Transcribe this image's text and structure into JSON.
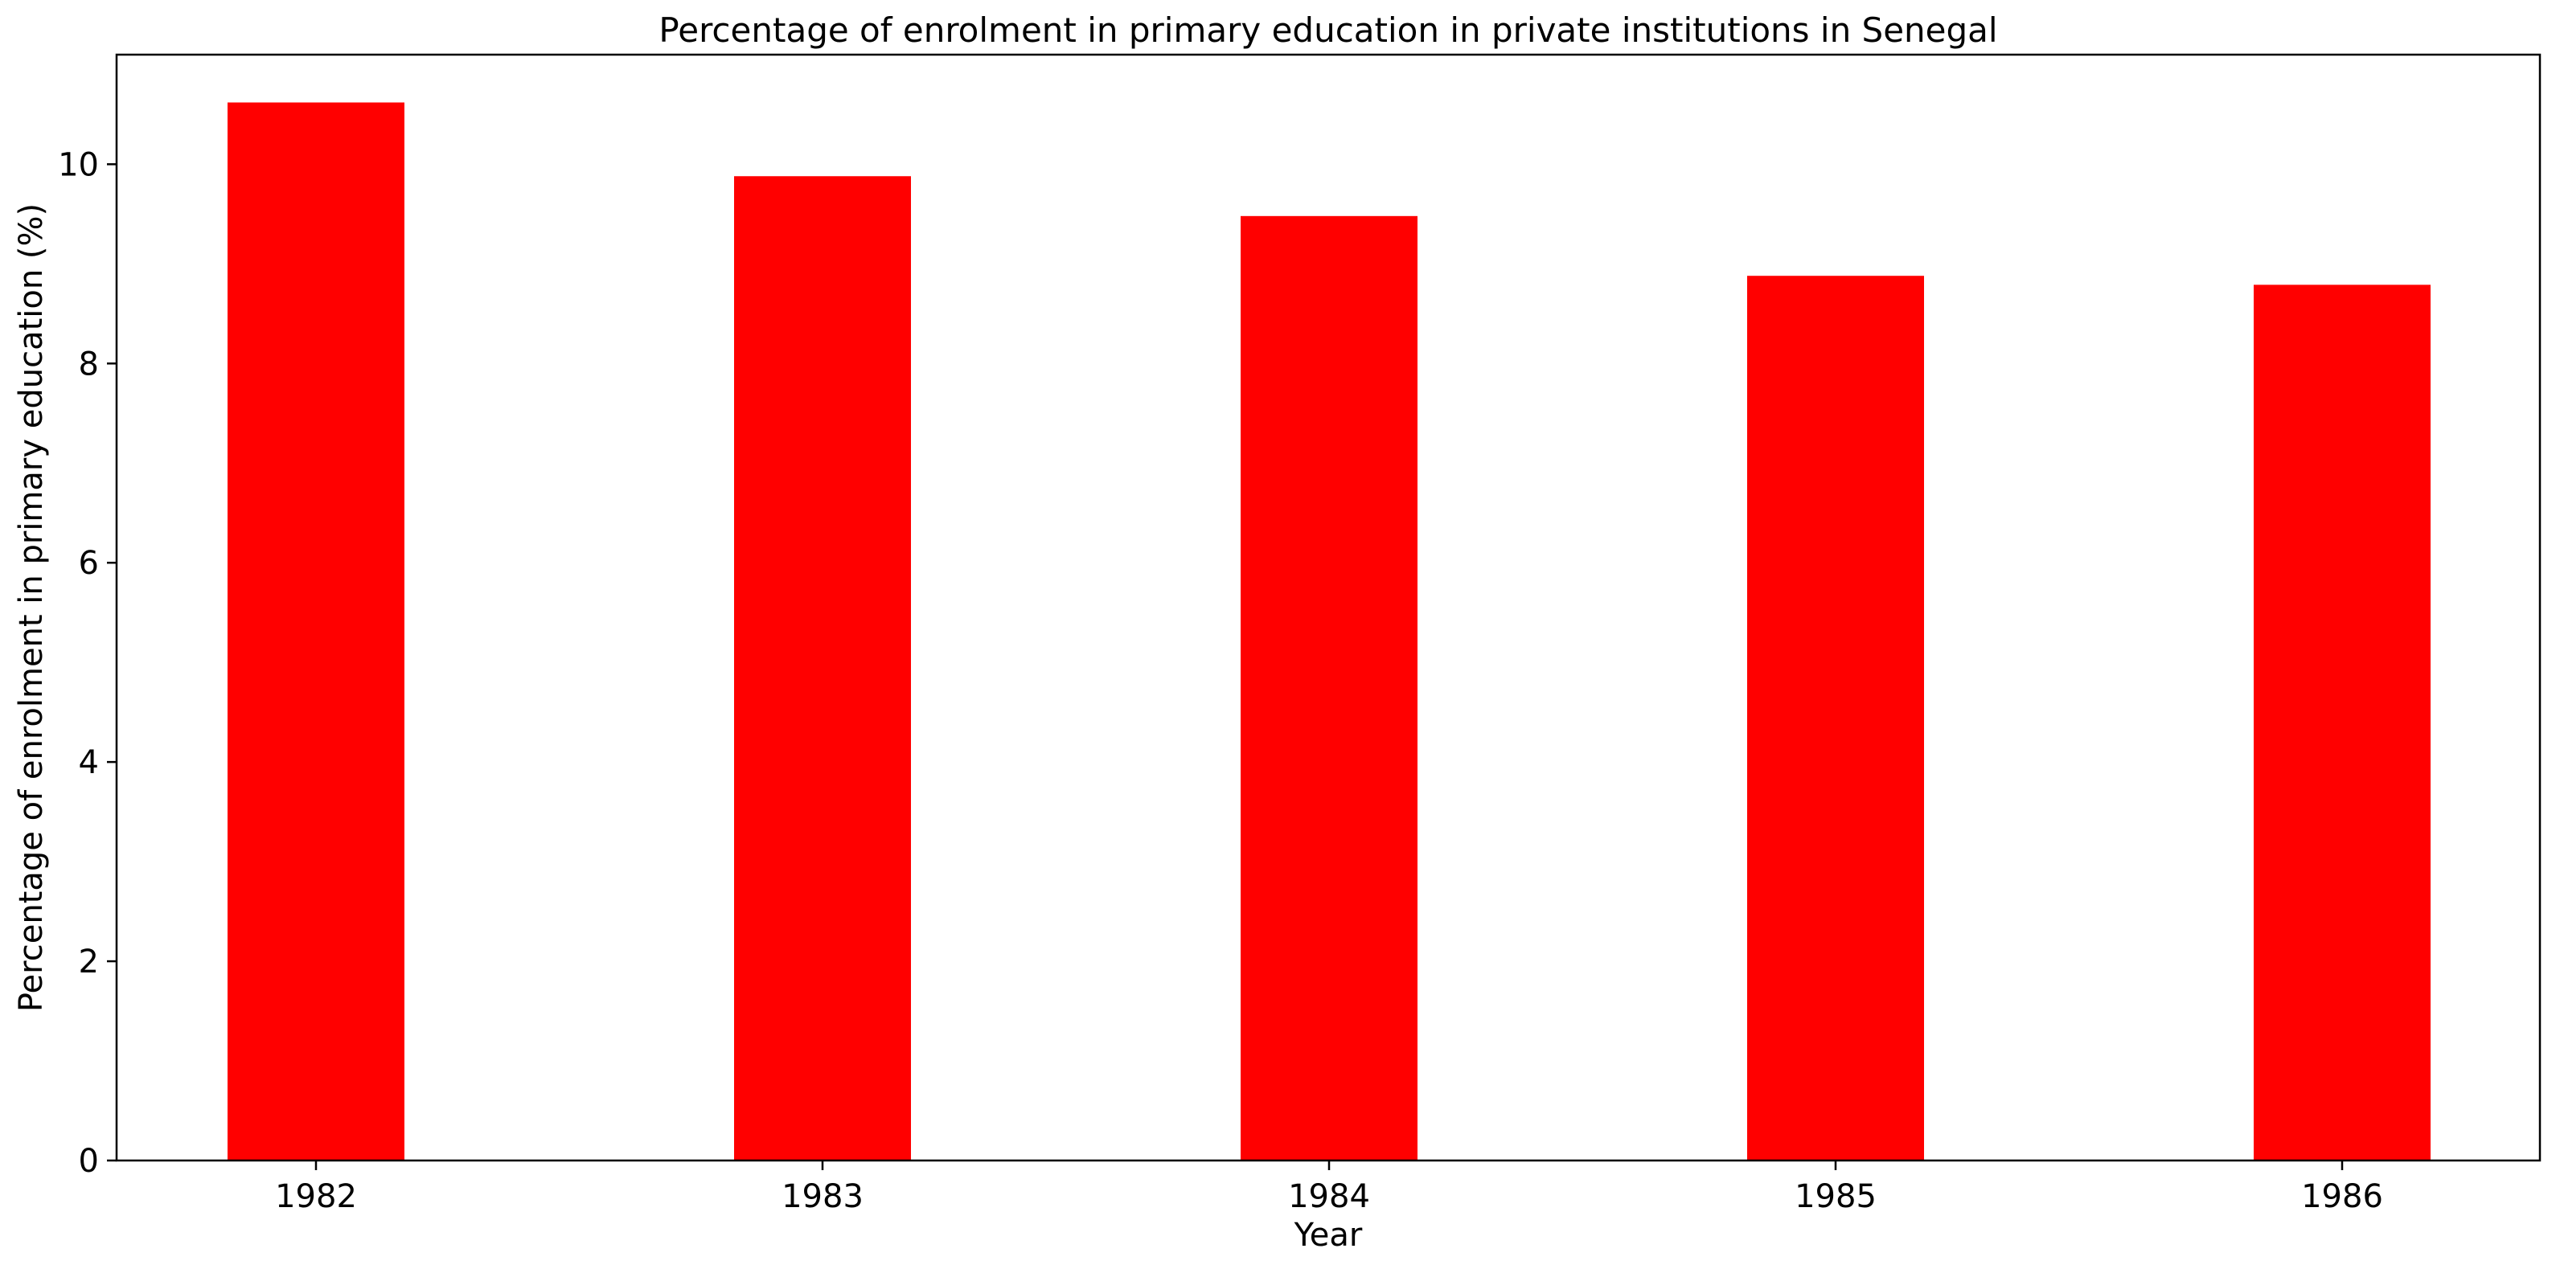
{
  "chart_data": {
    "type": "bar",
    "title": "Percentage of enrolment in primary education in private institutions in Senegal",
    "xlabel": "Year",
    "ylabel": "Percentage of enrolment in primary education (%)",
    "categories": [
      "1982",
      "1983",
      "1984",
      "1985",
      "1986"
    ],
    "values": [
      10.62,
      9.88,
      9.48,
      8.88,
      8.79
    ],
    "ylim": [
      0,
      11.1
    ],
    "yticks": [
      0,
      2,
      4,
      6,
      8,
      10
    ],
    "grid": false,
    "legend": "none",
    "bar_color": "#ff0000"
  }
}
